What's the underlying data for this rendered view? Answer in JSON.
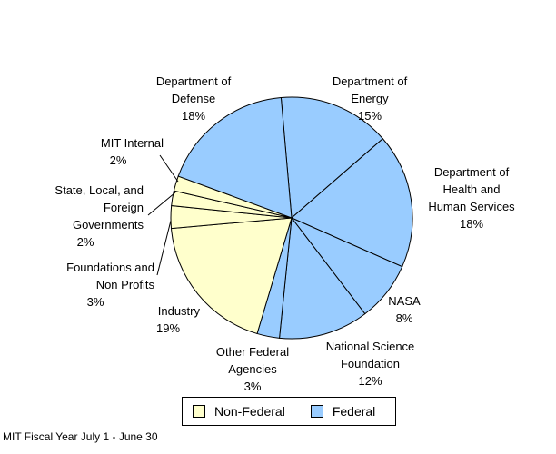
{
  "chart_data": {
    "type": "pie",
    "start_angle_deg": -5,
    "direction": "clockwise",
    "slices": [
      {
        "label": "Department of\nEnergy",
        "value": 15,
        "pct": "15%",
        "group": "Federal"
      },
      {
        "label": "Department of\nHealth and\nHuman Services",
        "value": 18,
        "pct": "18%",
        "group": "Federal"
      },
      {
        "label": "NASA",
        "value": 8,
        "pct": "8%",
        "group": "Federal"
      },
      {
        "label": "National Science\nFoundation",
        "value": 12,
        "pct": "12%",
        "group": "Federal"
      },
      {
        "label": "Other Federal\nAgencies",
        "value": 3,
        "pct": "3%",
        "group": "Federal"
      },
      {
        "label": "Industry",
        "value": 19,
        "pct": "19%",
        "group": "Non-Federal"
      },
      {
        "label": "Foundations and\nNon Profits",
        "value": 3,
        "pct": "3%",
        "group": "Non-Federal"
      },
      {
        "label": "State, Local, and\nForeign\nGovernments",
        "value": 2,
        "pct": "2%",
        "group": "Non-Federal"
      },
      {
        "label": "MIT Internal",
        "value": 2,
        "pct": "2%",
        "group": "Non-Federal"
      },
      {
        "label": "Department of\nDefense",
        "value": 18,
        "pct": "18%",
        "group": "Federal"
      }
    ],
    "legend": [
      {
        "label": "Non-Federal",
        "color": "#FFFFCC"
      },
      {
        "label": "Federal",
        "color": "#99CCFF"
      }
    ],
    "legend_placement": "bottom"
  },
  "footnote": "MIT Fiscal Year July 1 - June 30"
}
